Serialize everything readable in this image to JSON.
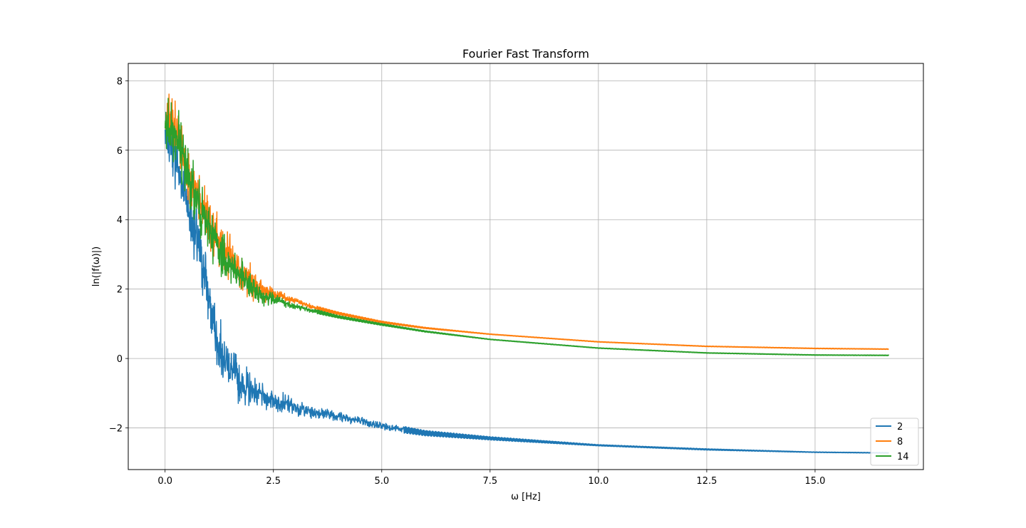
{
  "chart_data": {
    "type": "line",
    "title": "Fourier Fast Transform",
    "xlabel": "ω [Hz]",
    "ylabel": "ln(|f(ω)|)",
    "xlim": [
      -0.85,
      17.5
    ],
    "ylim": [
      -3.2,
      8.5
    ],
    "x_ticks": [
      0.0,
      2.5,
      5.0,
      7.5,
      10.0,
      12.5,
      15.0
    ],
    "x_tick_labels": [
      "0.0",
      "2.5",
      "5.0",
      "7.5",
      "10.0",
      "12.5",
      "15.0"
    ],
    "y_ticks": [
      -2,
      0,
      2,
      4,
      6,
      8
    ],
    "y_tick_labels": [
      "−2",
      "0",
      "2",
      "4",
      "6",
      "8"
    ],
    "grid": true,
    "legend_position": "lower-right",
    "series": [
      {
        "name": "2",
        "color": "#1f77b4",
        "noise_until": 5.5,
        "x": [
          0.0,
          0.3,
          0.6,
          0.9,
          1.2,
          1.5,
          1.8,
          2.1,
          2.5,
          3.0,
          3.5,
          4.0,
          5.0,
          6.0,
          7.5,
          10.0,
          12.5,
          15.0,
          16.7
        ],
        "y": [
          6.5,
          5.5,
          4.0,
          2.5,
          0.5,
          -0.3,
          -0.8,
          -1.0,
          -1.2,
          -1.4,
          -1.55,
          -1.65,
          -1.95,
          -2.15,
          -2.3,
          -2.5,
          -2.62,
          -2.7,
          -2.72
        ],
        "amplitude": [
          0.8,
          1.0,
          1.0,
          1.2,
          0.9,
          0.8,
          0.7,
          0.45,
          0.35,
          0.28,
          0.22,
          0.18,
          0.12,
          0.08,
          0.05,
          0.02,
          0.02,
          0.01,
          0.01
        ]
      },
      {
        "name": "8",
        "color": "#ff7f0e",
        "noise_until": 3.5,
        "x": [
          0.0,
          0.3,
          0.6,
          0.9,
          1.2,
          1.5,
          1.8,
          2.1,
          2.5,
          3.0,
          3.5,
          4.0,
          5.0,
          6.0,
          7.5,
          10.0,
          12.5,
          15.0,
          16.7
        ],
        "y": [
          6.8,
          6.5,
          5.0,
          4.2,
          3.5,
          3.0,
          2.5,
          2.0,
          1.85,
          1.65,
          1.45,
          1.3,
          1.05,
          0.88,
          0.7,
          0.48,
          0.35,
          0.29,
          0.27
        ],
        "amplitude": [
          0.9,
          1.0,
          0.8,
          0.9,
          0.9,
          0.8,
          0.7,
          0.45,
          0.2,
          0.1,
          0.06,
          0.04,
          0.03,
          0.02,
          0.01,
          0.01,
          0.01,
          0.01,
          0.01
        ]
      },
      {
        "name": "14",
        "color": "#2ca02c",
        "noise_until": 3.5,
        "x": [
          0.0,
          0.3,
          0.6,
          0.9,
          1.2,
          1.5,
          1.8,
          2.1,
          2.5,
          3.0,
          3.5,
          4.0,
          5.0,
          6.0,
          7.5,
          10.0,
          12.5,
          15.0,
          16.7
        ],
        "y": [
          6.8,
          6.3,
          5.0,
          4.0,
          3.3,
          2.7,
          2.3,
          1.9,
          1.7,
          1.5,
          1.35,
          1.2,
          0.98,
          0.78,
          0.55,
          0.3,
          0.16,
          0.1,
          0.09
        ],
        "amplitude": [
          0.9,
          1.0,
          0.9,
          0.9,
          0.8,
          0.7,
          0.6,
          0.4,
          0.2,
          0.1,
          0.06,
          0.04,
          0.03,
          0.02,
          0.01,
          0.01,
          0.01,
          0.01,
          0.01
        ]
      }
    ]
  }
}
